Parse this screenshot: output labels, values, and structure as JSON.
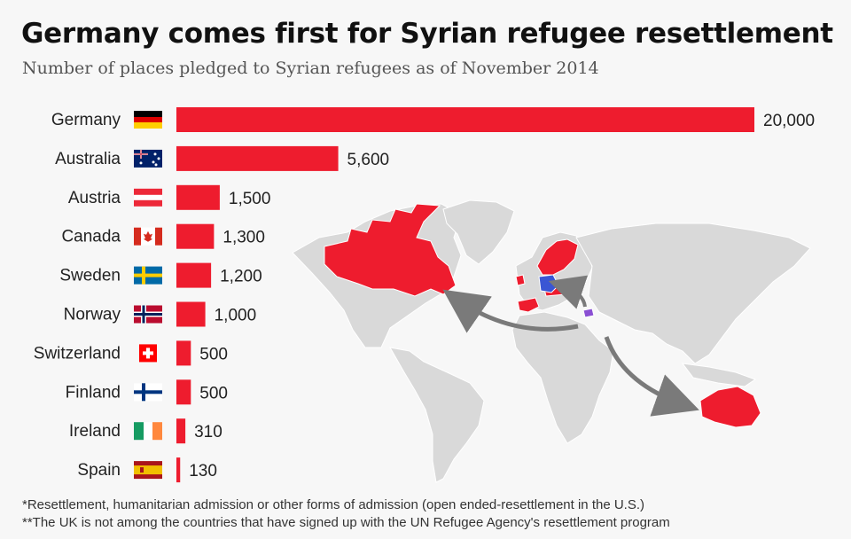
{
  "title": "Germany comes first for Syrian refugee resettlement",
  "subtitle": "Number of places pledged to Syrian refugees as of November 2014",
  "colors": {
    "bar": "#ee1c2e",
    "map_land": "#d9d9d9",
    "map_border": "#ffffff",
    "arrow": "#7a7a7a",
    "origin": "#8a4fd3",
    "germany_map": "#3a56d4"
  },
  "chart_data": {
    "type": "bar",
    "orientation": "horizontal",
    "title": "Germany comes first for Syrian refugee resettlement",
    "subtitle": "Number of places pledged to Syrian refugees as of November 2014",
    "categories": [
      "Germany",
      "Australia",
      "Austria",
      "Canada",
      "Sweden",
      "Norway",
      "Switzerland",
      "Finland",
      "Ireland",
      "Spain"
    ],
    "values": [
      20000,
      5600,
      1500,
      1300,
      1200,
      1000,
      500,
      500,
      310,
      130
    ],
    "value_labels": [
      "20,000",
      "5,600",
      "1,500",
      "1,300",
      "1,200",
      "1,000",
      "500",
      "500",
      "310",
      "130"
    ],
    "flags": [
      "germany-flag",
      "australia-flag",
      "austria-flag",
      "canada-flag",
      "sweden-flag",
      "norway-flag",
      "switzerland-flag",
      "finland-flag",
      "ireland-flag",
      "spain-flag"
    ],
    "xlim": [
      0,
      20000
    ],
    "xlabel": "",
    "ylabel": "",
    "grid": false,
    "legend": "none"
  },
  "footnotes": [
    "*Resettlement, humanitarian admission or other forms of admission (open ended-resettlement in the U.S.)",
    "**The UK is not among the countries that have signed up with the UN Refugee Agency's resettlement program"
  ]
}
